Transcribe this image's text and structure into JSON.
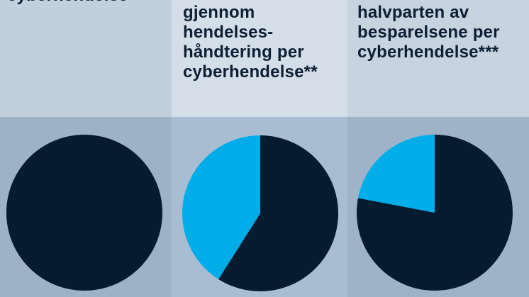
{
  "panels": [
    {
      "label": "cyberhendelse"
    },
    {
      "label": "gjennom\nhendelses-\nhåndtering per\ncyberhendelse**"
    },
    {
      "label": "halvparten av\nbesparelsene per\ncyberhendelse***"
    }
  ],
  "colors": {
    "dark": "#041b30",
    "accent": "#00ade8"
  },
  "chart_data": [
    {
      "type": "pie",
      "slices": [
        {
          "label": "",
          "value": 100,
          "color": "#041b30"
        }
      ]
    },
    {
      "type": "pie",
      "slices": [
        {
          "label": "",
          "value": 59,
          "color": "#041b30"
        },
        {
          "label": "",
          "value": 41,
          "color": "#00ade8"
        }
      ]
    },
    {
      "type": "pie",
      "slices": [
        {
          "label": "",
          "value": 78,
          "color": "#041b30"
        },
        {
          "label": "",
          "value": 22,
          "color": "#00ade8"
        }
      ]
    }
  ]
}
